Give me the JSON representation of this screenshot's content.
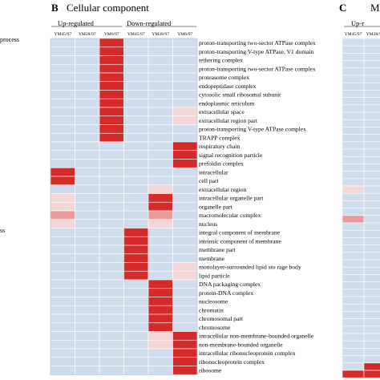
{
  "panel_a": {
    "fragment_1": "process",
    "fragment_2": "ss"
  },
  "panel_b": {
    "letter": "B",
    "title": "Cellular component",
    "group_up": "Up-regulated",
    "group_down": "Down-regulated"
  },
  "panel_c": {
    "letter": "C",
    "title": "M",
    "group_up": "Up-r"
  },
  "colors": {
    "background": "#ffffff",
    "base_blue": "#cfdcec",
    "mid_blue": "#b3c8e0",
    "light_pink": "#f5d6d6",
    "pink": "#ea9a9a",
    "red": "#d42a2a",
    "grid_line": "#ffffff"
  },
  "chart_data": [
    {
      "type": "heatmap",
      "title": "Cellular component",
      "columns": [
        "YM45/97",
        "YM28/97",
        "YM6/97",
        "YM45/97",
        "YM28/97",
        "YM6/97"
      ],
      "column_groups": [
        {
          "name": "Up-regulated",
          "columns": [
            0,
            1,
            2
          ]
        },
        {
          "name": "Down-regulated",
          "columns": [
            3,
            4,
            5
          ]
        }
      ],
      "value_scale": "0 = blue (not enriched), 1 = light pink, 2 = pink, 3 = red (strongly enriched)",
      "rows": [
        {
          "label": "proton-transporting two-sector ATPase complex",
          "values": [
            0,
            0,
            3,
            0,
            0,
            0
          ]
        },
        {
          "label": "proton-transporting V-type ATPase, V1 domain",
          "values": [
            0,
            0,
            3,
            0,
            0,
            0
          ]
        },
        {
          "label": "tethering complex",
          "values": [
            0,
            0,
            3,
            0,
            0,
            0
          ]
        },
        {
          "label": "proton-transporting two-sector ATPase complex",
          "values": [
            0,
            0,
            3,
            0,
            0,
            0
          ]
        },
        {
          "label": "proteasome complex",
          "values": [
            0,
            0,
            3,
            0,
            0,
            0
          ]
        },
        {
          "label": "endopeptidase complex",
          "values": [
            0,
            0,
            3,
            0,
            0,
            0
          ]
        },
        {
          "label": "cytosolic small ribosomal subunit",
          "values": [
            0,
            0,
            3,
            0,
            0,
            0
          ]
        },
        {
          "label": "endoplasmic reticulum",
          "values": [
            0,
            0,
            3,
            0,
            0,
            0
          ]
        },
        {
          "label": "extracellular space",
          "values": [
            0,
            0,
            3,
            0,
            0,
            1
          ]
        },
        {
          "label": "extracellular region part",
          "values": [
            0,
            0,
            3,
            0,
            0,
            1
          ]
        },
        {
          "label": "proton-transporting V-type ATPase complex",
          "values": [
            0,
            0,
            3,
            0,
            0,
            0
          ]
        },
        {
          "label": "TRAPP complex",
          "values": [
            0,
            0,
            3,
            0,
            0,
            0
          ]
        },
        {
          "label": "respiratory chain",
          "values": [
            0,
            0,
            0,
            0,
            0,
            3
          ]
        },
        {
          "label": "signal recognition particle",
          "values": [
            0,
            0,
            0,
            0,
            0,
            3
          ]
        },
        {
          "label": "prefoldin complex",
          "values": [
            0,
            0,
            0,
            0,
            0,
            3
          ]
        },
        {
          "label": "intracellular",
          "values": [
            3,
            0,
            0,
            0,
            0,
            0
          ]
        },
        {
          "label": "cell part",
          "values": [
            3,
            0,
            0,
            0,
            0,
            0
          ]
        },
        {
          "label": "extracellular region",
          "values": [
            0,
            0,
            0,
            0,
            1,
            0
          ]
        },
        {
          "label": "intracellular organelle part",
          "values": [
            1,
            0,
            0,
            0,
            3,
            0
          ]
        },
        {
          "label": "organelle part",
          "values": [
            1,
            0,
            0,
            0,
            3,
            0
          ]
        },
        {
          "label": "macromolecular complex",
          "values": [
            2,
            0,
            0,
            0,
            2,
            0
          ]
        },
        {
          "label": "nucleus",
          "values": [
            1,
            0,
            0,
            0,
            1,
            0
          ]
        },
        {
          "label": "integral component of membrane",
          "values": [
            0,
            0,
            0,
            3,
            0,
            0
          ]
        },
        {
          "label": "intrinsic component of membrane",
          "values": [
            0,
            0,
            0,
            3,
            0,
            0
          ]
        },
        {
          "label": "membrane part",
          "values": [
            0,
            0,
            0,
            3,
            0,
            0
          ]
        },
        {
          "label": "membrane",
          "values": [
            0,
            0,
            0,
            3,
            0,
            0
          ]
        },
        {
          "label": "monolayer-surrounded lipid sto rage body",
          "values": [
            0,
            0,
            0,
            3,
            0,
            1
          ]
        },
        {
          "label": "lipid particle",
          "values": [
            0,
            0,
            0,
            3,
            0,
            1
          ]
        },
        {
          "label": "DNA packaging complex",
          "values": [
            0,
            0,
            0,
            0,
            3,
            0
          ]
        },
        {
          "label": "protein-DNA complex",
          "values": [
            0,
            0,
            0,
            0,
            3,
            0
          ]
        },
        {
          "label": "nucleosome",
          "values": [
            0,
            0,
            0,
            0,
            3,
            0
          ]
        },
        {
          "label": "chromatin",
          "values": [
            0,
            0,
            0,
            0,
            3,
            0
          ]
        },
        {
          "label": "chromosomal part",
          "values": [
            0,
            0,
            0,
            0,
            3,
            0
          ]
        },
        {
          "label": "chromosome",
          "values": [
            0,
            0,
            0,
            0,
            3,
            0
          ]
        },
        {
          "label": "intracellular non-membrane-bounded organelle",
          "values": [
            0,
            0,
            0,
            0,
            1,
            3
          ]
        },
        {
          "label": "non-membrane-bounded organelle",
          "values": [
            0,
            0,
            0,
            0,
            1,
            3
          ]
        },
        {
          "label": "intracellular ribonucleoprotein complex",
          "values": [
            0,
            0,
            0,
            0,
            0,
            3
          ]
        },
        {
          "label": "ribonucleoprotein complex",
          "values": [
            0,
            0,
            0,
            0,
            0,
            3
          ]
        },
        {
          "label": "ribosome",
          "values": [
            0,
            0,
            0,
            0,
            0,
            3
          ]
        }
      ]
    },
    {
      "type": "heatmap",
      "title": "M",
      "columns": [
        "YM45/97",
        "YM28/97"
      ],
      "value_scale": "0 = blue, 1 = light pink, 2 = pink, 3 = red",
      "rows": [
        {
          "values": [
            0,
            0
          ]
        },
        {
          "values": [
            0,
            0
          ]
        },
        {
          "values": [
            0,
            0
          ]
        },
        {
          "values": [
            0,
            0
          ]
        },
        {
          "values": [
            0,
            0
          ]
        },
        {
          "values": [
            0,
            0
          ]
        },
        {
          "values": [
            0,
            0
          ]
        },
        {
          "values": [
            0,
            0
          ]
        },
        {
          "values": [
            0,
            0
          ]
        },
        {
          "values": [
            0,
            0
          ]
        },
        {
          "values": [
            0,
            0
          ]
        },
        {
          "values": [
            0,
            0
          ]
        },
        {
          "values": [
            0,
            0
          ]
        },
        {
          "values": [
            0,
            0
          ]
        },
        {
          "values": [
            0,
            0
          ]
        },
        {
          "values": [
            0,
            0
          ]
        },
        {
          "values": [
            0,
            0
          ]
        },
        {
          "values": [
            0,
            0
          ]
        },
        {
          "values": [
            0,
            0
          ]
        },
        {
          "values": [
            0,
            0
          ]
        },
        {
          "values": [
            1,
            0
          ]
        },
        {
          "values": [
            0,
            0
          ]
        },
        {
          "values": [
            0,
            0
          ]
        },
        {
          "values": [
            0,
            0
          ]
        },
        {
          "values": [
            2,
            0
          ]
        },
        {
          "values": [
            0,
            0
          ]
        },
        {
          "values": [
            0,
            0
          ]
        },
        {
          "values": [
            0,
            0
          ]
        },
        {
          "values": [
            0,
            0
          ]
        },
        {
          "values": [
            0,
            0
          ]
        },
        {
          "values": [
            0,
            0
          ]
        },
        {
          "values": [
            0,
            0
          ]
        },
        {
          "values": [
            0,
            0
          ]
        },
        {
          "values": [
            0,
            0
          ]
        },
        {
          "values": [
            0,
            0
          ]
        },
        {
          "values": [
            0,
            0
          ]
        },
        {
          "values": [
            0,
            0
          ]
        },
        {
          "values": [
            0,
            0
          ]
        },
        {
          "values": [
            0,
            0
          ]
        },
        {
          "values": [
            0,
            0
          ]
        },
        {
          "values": [
            0,
            0
          ]
        },
        {
          "values": [
            0,
            0
          ]
        },
        {
          "values": [
            0,
            0
          ]
        },
        {
          "values": [
            0,
            0
          ]
        },
        {
          "values": [
            0,
            3
          ]
        },
        {
          "values": [
            3,
            3
          ]
        }
      ]
    }
  ]
}
